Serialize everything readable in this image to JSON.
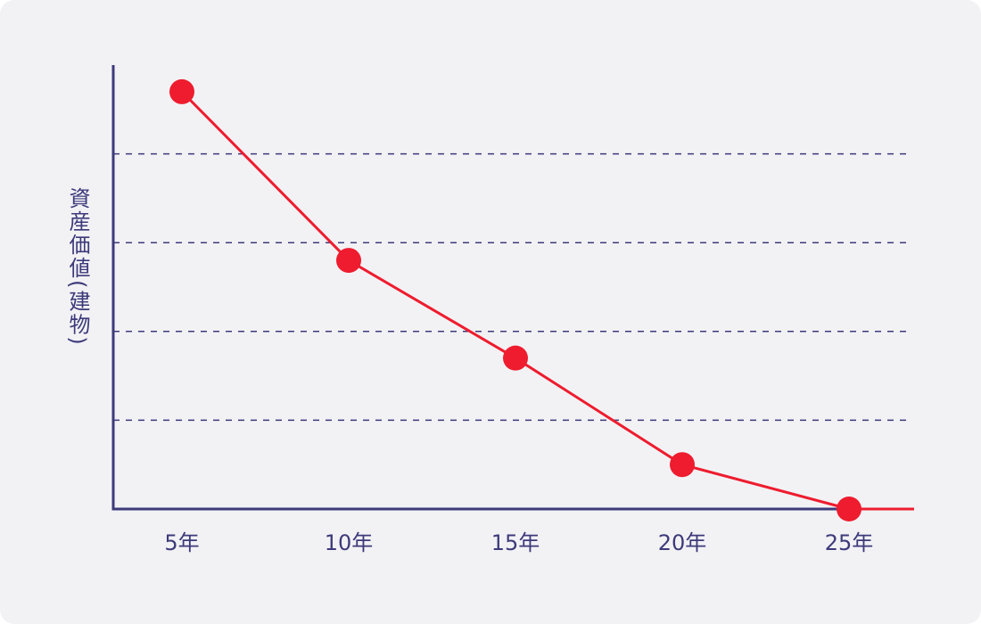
{
  "chart_data": {
    "type": "line",
    "y_label": "資産価値(建物)",
    "categories": [
      "5年",
      "10年",
      "15年",
      "20年",
      "25年"
    ],
    "values": [
      4.7,
      2.8,
      1.7,
      0.5,
      0
    ],
    "color": "#ee1c2e",
    "ylim": [
      0,
      5
    ],
    "yticks": [
      1,
      2,
      3,
      4
    ],
    "grid": true
  }
}
